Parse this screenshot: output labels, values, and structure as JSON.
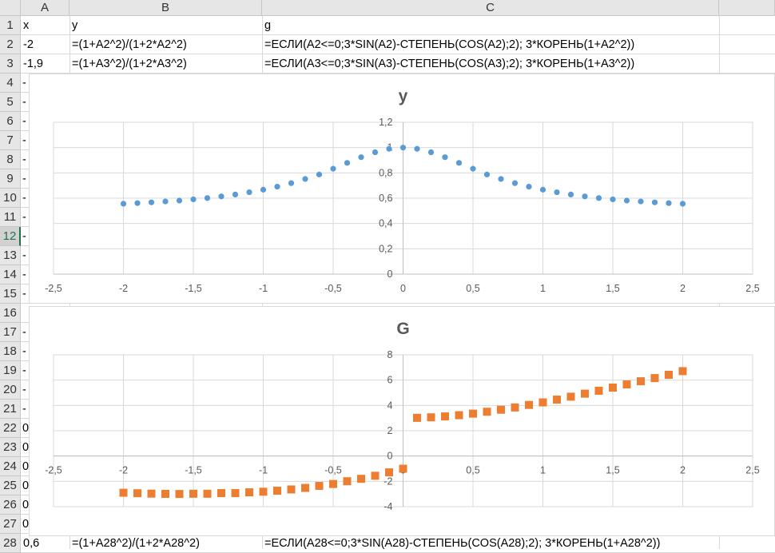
{
  "columns": [
    "A",
    "B",
    "C"
  ],
  "rows": [
    "1",
    "2",
    "3",
    "4",
    "5",
    "6",
    "7",
    "8",
    "9",
    "10",
    "11",
    "12",
    "13",
    "14",
    "15",
    "16",
    "17",
    "18",
    "19",
    "20",
    "21",
    "22",
    "23",
    "24",
    "25",
    "26",
    "27",
    "28"
  ],
  "selected_row": "12",
  "cells": {
    "r1": {
      "a": "x",
      "b": "y",
      "c": "g"
    },
    "r2": {
      "a": "-2",
      "b": "=(1+A2^2)/(1+2*A2^2)",
      "c": "=ЕСЛИ(A2<=0;3*SIN(A2)-СТЕПЕНЬ(COS(A2);2); 3*КОРЕНЬ(1+A2^2))"
    },
    "r3": {
      "a": "-1,9",
      "b": "=(1+A3^2)/(1+2*A3^2)",
      "c": "=ЕСЛИ(A3<=0;3*SIN(A3)-СТЕПЕНЬ(COS(A3);2); 3*КОРЕНЬ(1+A3^2))"
    },
    "r28": {
      "a": "0,6",
      "b": "=(1+A28^2)/(1+2*A28^2)",
      "c": "=ЕСЛИ(A28<=0;3*SIN(A28)-СТЕПЕНЬ(COS(A28);2); 3*КОРЕНЬ(1+A28^2))"
    }
  },
  "peek_cells": {
    "rows_4_21": "-",
    "rows_22_27": "0"
  },
  "colors": {
    "series_y": "#5b9bd5",
    "series_g": "#ed7d31",
    "grid": "#d9d9d9",
    "axis": "#bfbfbf",
    "text": "#595959"
  },
  "chart_data": [
    {
      "type": "scatter",
      "title": "y",
      "marker": "circle",
      "xlim": [
        -2.5,
        2.5
      ],
      "ylim": [
        0,
        1.2
      ],
      "x_ticks": [
        "-2,5",
        "-2",
        "-1,5",
        "-1",
        "-0,5",
        "0",
        "0,5",
        "1",
        "1,5",
        "2",
        "2,5"
      ],
      "y_ticks": [
        "0",
        "0,2",
        "0,4",
        "0,6",
        "0,8",
        "1",
        "1,2"
      ],
      "series": [
        {
          "name": "y",
          "x": [
            -2,
            -1.9,
            -1.8,
            -1.7,
            -1.6,
            -1.5,
            -1.4,
            -1.3,
            -1.2,
            -1.1,
            -1,
            -0.9,
            -0.8,
            -0.7,
            -0.6,
            -0.5,
            -0.4,
            -0.3,
            -0.2,
            -0.1,
            0,
            0.1,
            0.2,
            0.3,
            0.4,
            0.5,
            0.6,
            0.7,
            0.8,
            0.9,
            1,
            1.1,
            1.2,
            1.3,
            1.4,
            1.5,
            1.6,
            1.7,
            1.8,
            1.9,
            2
          ],
          "y": [
            0.556,
            0.561,
            0.567,
            0.574,
            0.581,
            0.591,
            0.601,
            0.614,
            0.629,
            0.647,
            0.667,
            0.691,
            0.719,
            0.752,
            0.787,
            0.833,
            0.879,
            0.924,
            0.963,
            0.99,
            1,
            0.99,
            0.963,
            0.924,
            0.879,
            0.833,
            0.787,
            0.752,
            0.719,
            0.691,
            0.667,
            0.647,
            0.629,
            0.614,
            0.601,
            0.591,
            0.581,
            0.574,
            0.567,
            0.561,
            0.556
          ]
        }
      ]
    },
    {
      "type": "scatter",
      "title": "G",
      "marker": "square",
      "xlim": [
        -2.5,
        2.5
      ],
      "ylim": [
        -4,
        8
      ],
      "x_ticks": [
        "-2,5",
        "-2",
        "-1,5",
        "-1",
        "-0,5",
        "0",
        "0,5",
        "1",
        "1,5",
        "2",
        "2,5"
      ],
      "y_ticks": [
        "-4",
        "-2",
        "0",
        "2",
        "4",
        "6",
        "8"
      ],
      "series": [
        {
          "name": "g",
          "x": [
            -2,
            -1.9,
            -1.8,
            -1.7,
            -1.6,
            -1.5,
            -1.4,
            -1.3,
            -1.2,
            -1.1,
            -1,
            -0.9,
            -0.8,
            -0.7,
            -0.6,
            -0.5,
            -0.4,
            -0.3,
            -0.2,
            -0.1,
            0,
            0.1,
            0.2,
            0.3,
            0.4,
            0.5,
            0.6,
            0.7,
            0.8,
            0.9,
            1,
            1.1,
            1.2,
            1.3,
            1.4,
            1.5,
            1.6,
            1.7,
            1.8,
            1.9,
            2
          ],
          "y": [
            -2.9,
            -2.94,
            -2.97,
            -2.99,
            -3.0,
            -2.98,
            -2.98,
            -2.93,
            -2.93,
            -2.87,
            -2.82,
            -2.74,
            -2.64,
            -2.52,
            -2.36,
            -2.21,
            -1.99,
            -1.8,
            -1.56,
            -1.29,
            -1.0,
            3.02,
            3.06,
            3.13,
            3.23,
            3.35,
            3.5,
            3.66,
            3.84,
            4.04,
            4.24,
            4.46,
            4.69,
            4.93,
            5.16,
            5.41,
            5.66,
            5.91,
            6.16,
            6.42,
            6.71
          ]
        }
      ]
    }
  ]
}
